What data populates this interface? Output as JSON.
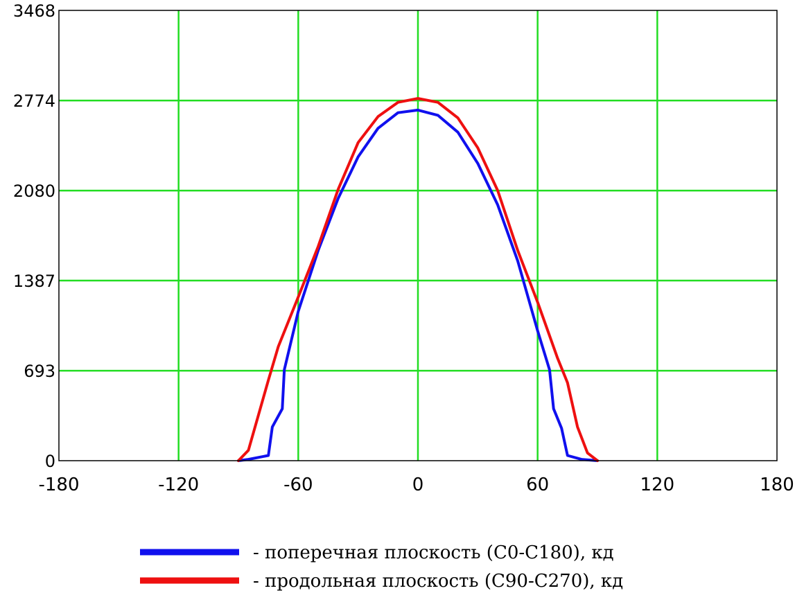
{
  "colors": {
    "grid": "#22dd22",
    "series_transverse": "#1010ee",
    "series_longitudinal": "#ee1010",
    "axis": "#000000"
  },
  "chart_data": {
    "type": "line",
    "title": "",
    "xlabel": "",
    "ylabel": "",
    "xlim": [
      -180,
      180
    ],
    "ylim": [
      0,
      3468
    ],
    "x_ticks": [
      "-180",
      "-120",
      "-60",
      "0",
      "60",
      "120",
      "180"
    ],
    "y_ticks": [
      "0",
      "693",
      "1387",
      "2080",
      "2774",
      "3468"
    ],
    "grid": true,
    "legend_position": "bottom",
    "series": [
      {
        "name": "- поперечная плоскость (C0-C180), кд",
        "color": "#1010ee",
        "points": [
          [
            -90,
            0
          ],
          [
            -85,
            10
          ],
          [
            -75,
            40
          ],
          [
            -73,
            260
          ],
          [
            -68,
            400
          ],
          [
            -67,
            700
          ],
          [
            -60,
            1150
          ],
          [
            -50,
            1620
          ],
          [
            -40,
            2020
          ],
          [
            -30,
            2340
          ],
          [
            -20,
            2560
          ],
          [
            -10,
            2680
          ],
          [
            0,
            2700
          ],
          [
            10,
            2660
          ],
          [
            20,
            2530
          ],
          [
            30,
            2290
          ],
          [
            40,
            1970
          ],
          [
            50,
            1540
          ],
          [
            60,
            1000
          ],
          [
            66,
            700
          ],
          [
            68,
            400
          ],
          [
            72,
            250
          ],
          [
            75,
            40
          ],
          [
            82,
            10
          ],
          [
            90,
            0
          ]
        ]
      },
      {
        "name": "- продольная плоскость (C90-C270), кд",
        "color": "#ee1010",
        "points": [
          [
            -90,
            0
          ],
          [
            -85,
            80
          ],
          [
            -80,
            350
          ],
          [
            -75,
            620
          ],
          [
            -70,
            880
          ],
          [
            -60,
            1260
          ],
          [
            -50,
            1650
          ],
          [
            -40,
            2090
          ],
          [
            -30,
            2450
          ],
          [
            -20,
            2650
          ],
          [
            -10,
            2760
          ],
          [
            0,
            2790
          ],
          [
            10,
            2760
          ],
          [
            20,
            2640
          ],
          [
            30,
            2410
          ],
          [
            40,
            2080
          ],
          [
            50,
            1620
          ],
          [
            60,
            1220
          ],
          [
            70,
            790
          ],
          [
            75,
            600
          ],
          [
            80,
            260
          ],
          [
            85,
            60
          ],
          [
            90,
            0
          ]
        ]
      }
    ]
  }
}
